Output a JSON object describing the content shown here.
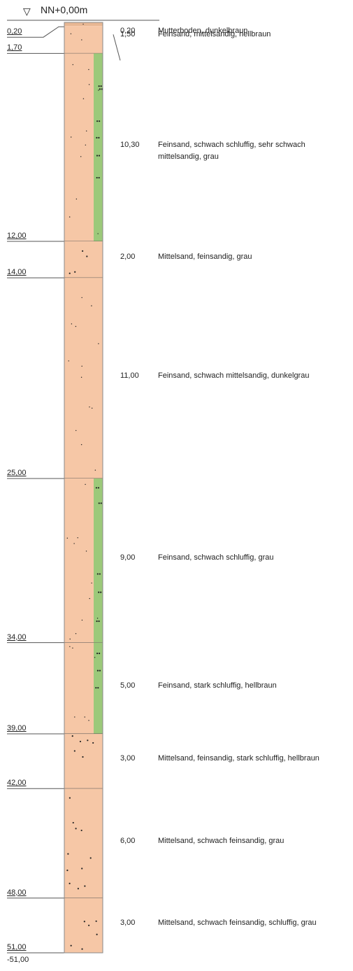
{
  "header": {
    "symbol": "▽",
    "label": "NN+0,00m"
  },
  "chart_data": {
    "type": "borehole-profile",
    "unit": "m",
    "bottom_elevation_label": "-51,00",
    "layers": [
      {
        "top": 0.0,
        "bottom": 0.2,
        "depth_label": "0,20",
        "thickness_label": "0,20",
        "description": "Mutterboden, dunkelbraun",
        "silt": false,
        "coarse": false
      },
      {
        "top": 0.2,
        "bottom": 1.7,
        "depth_label": "1,70",
        "thickness_label": "1,50",
        "description": "Feinsand, mittelsandig, hellbraun",
        "silt": false,
        "coarse": false
      },
      {
        "top": 1.7,
        "bottom": 12.0,
        "depth_label": "12,00",
        "thickness_label": "10,30",
        "description": "Feinsand, schwach schluffig, sehr schwach mittelsandig, grau",
        "silt": true,
        "coarse": false
      },
      {
        "top": 12.0,
        "bottom": 14.0,
        "depth_label": "14,00",
        "thickness_label": "2,00",
        "description": "Mittelsand, feinsandig, grau",
        "silt": false,
        "coarse": true
      },
      {
        "top": 14.0,
        "bottom": 25.0,
        "depth_label": "25,00",
        "thickness_label": "11,00",
        "description": "Feinsand, schwach mittelsandig, dunkelgrau",
        "silt": false,
        "coarse": false
      },
      {
        "top": 25.0,
        "bottom": 34.0,
        "depth_label": "34,00",
        "thickness_label": "9,00",
        "description": "Feinsand, schwach schluffig, grau",
        "silt": true,
        "coarse": false
      },
      {
        "top": 34.0,
        "bottom": 39.0,
        "depth_label": "39,00",
        "thickness_label": "5,00",
        "description": "Feinsand, stark schluffig, hellbraun",
        "silt": true,
        "coarse": false
      },
      {
        "top": 39.0,
        "bottom": 42.0,
        "depth_label": "42,00",
        "thickness_label": "3,00",
        "description": "Mittelsand, feinsandig, stark schluffig, hellbraun",
        "silt": false,
        "coarse": true
      },
      {
        "top": 42.0,
        "bottom": 48.0,
        "depth_label": "48,00",
        "thickness_label": "6,00",
        "description": "Mittelsand, schwach feinsandig, grau",
        "silt": false,
        "coarse": true
      },
      {
        "top": 48.0,
        "bottom": 51.0,
        "depth_label": "51,00",
        "thickness_label": "3,00",
        "description": "Mittelsand, schwach feinsandig, schluffig, grau",
        "silt": false,
        "coarse": true
      }
    ],
    "colors": {
      "sand": "#f6c7a6",
      "silt": "#9cc97a",
      "topsoil": "#e8b793",
      "line": "#555555",
      "dot": "#222222"
    }
  }
}
